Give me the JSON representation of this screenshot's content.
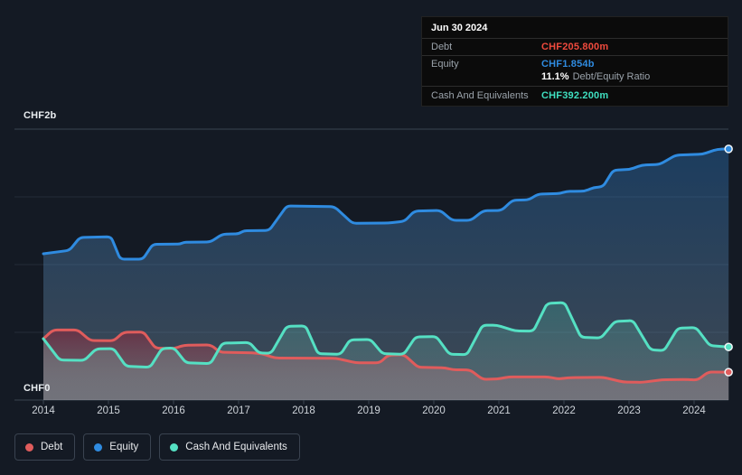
{
  "tooltip": {
    "date": "Jun 30 2024",
    "rows": {
      "debt": {
        "label": "Debt",
        "value": "CHF205.800m"
      },
      "equity": {
        "label": "Equity",
        "value": "CHF1.854b",
        "ratio_value": "11.1%",
        "ratio_label": "Debt/Equity Ratio"
      },
      "cash": {
        "label": "Cash And Equivalents",
        "value": "CHF392.200m"
      }
    }
  },
  "y_axis": {
    "top_label": "CHF2b",
    "bottom_label": "CHF0"
  },
  "x_axis": {
    "years": [
      "2014",
      "2015",
      "2016",
      "2017",
      "2018",
      "2019",
      "2020",
      "2021",
      "2022",
      "2023",
      "2024"
    ]
  },
  "legend": [
    {
      "key": "debt",
      "label": "Debt",
      "color": "#e05c5c"
    },
    {
      "key": "equity",
      "label": "Equity",
      "color": "#2f8be0"
    },
    {
      "key": "cash",
      "label": "Cash And Equivalents",
      "color": "#55e0c3"
    }
  ],
  "colors": {
    "background": "#141a24",
    "gridline_major": "#3a4451",
    "gridline_minor": "#232c38",
    "axis_text": "#ced3d9",
    "tooltip_background": "#0b0b0b",
    "debt": "#e05c5c",
    "equity": "#2f8be0",
    "cash": "#55e0c3"
  },
  "chart_data": {
    "type": "area",
    "title": "",
    "xlabel": "",
    "ylabel": "CHF",
    "unit": "CHF billions",
    "x_unit": "decimal year",
    "xlim": [
      2014.0,
      2024.53
    ],
    "ylim": [
      0,
      2
    ],
    "gridline_step": 0.5,
    "grid": true,
    "legend_position": "bottom-left",
    "latest": {
      "date": "Jun 30 2024",
      "debt_b": 0.2058,
      "equity_b": 1.854,
      "cash_b": 0.3922,
      "debt_equity_ratio_pct": 11.1
    },
    "series": [
      {
        "key": "equity",
        "name": "Equity",
        "color": "#2f8be0",
        "points": [
          [
            2014.0,
            1.08
          ],
          [
            2014.4,
            1.105
          ],
          [
            2014.56,
            1.2
          ],
          [
            2015.04,
            1.205
          ],
          [
            2015.18,
            1.04
          ],
          [
            2015.53,
            1.04
          ],
          [
            2015.68,
            1.15
          ],
          [
            2016.1,
            1.152
          ],
          [
            2016.16,
            1.165
          ],
          [
            2016.57,
            1.167
          ],
          [
            2016.75,
            1.225
          ],
          [
            2017.0,
            1.227
          ],
          [
            2017.08,
            1.25
          ],
          [
            2017.47,
            1.252
          ],
          [
            2017.74,
            1.433
          ],
          [
            2018.47,
            1.428
          ],
          [
            2018.75,
            1.305
          ],
          [
            2019.3,
            1.307
          ],
          [
            2019.55,
            1.32
          ],
          [
            2019.7,
            1.395
          ],
          [
            2020.1,
            1.4
          ],
          [
            2020.28,
            1.327
          ],
          [
            2020.57,
            1.327
          ],
          [
            2020.76,
            1.398
          ],
          [
            2021.04,
            1.4
          ],
          [
            2021.21,
            1.475
          ],
          [
            2021.46,
            1.478
          ],
          [
            2021.6,
            1.52
          ],
          [
            2021.94,
            1.525
          ],
          [
            2022.04,
            1.54
          ],
          [
            2022.32,
            1.542
          ],
          [
            2022.46,
            1.57
          ],
          [
            2022.6,
            1.575
          ],
          [
            2022.76,
            1.698
          ],
          [
            2023.01,
            1.702
          ],
          [
            2023.2,
            1.735
          ],
          [
            2023.47,
            1.74
          ],
          [
            2023.72,
            1.808
          ],
          [
            2024.13,
            1.815
          ],
          [
            2024.36,
            1.852
          ],
          [
            2024.53,
            1.854
          ]
        ]
      },
      {
        "key": "debt",
        "name": "Debt",
        "color": "#e05c5c",
        "points": [
          [
            2014.0,
            0.453
          ],
          [
            2014.15,
            0.517
          ],
          [
            2014.53,
            0.517
          ],
          [
            2014.72,
            0.44
          ],
          [
            2015.08,
            0.438
          ],
          [
            2015.23,
            0.5
          ],
          [
            2015.54,
            0.502
          ],
          [
            2015.72,
            0.383
          ],
          [
            2016.01,
            0.38
          ],
          [
            2016.16,
            0.405
          ],
          [
            2016.57,
            0.407
          ],
          [
            2016.72,
            0.353
          ],
          [
            2017.21,
            0.349
          ],
          [
            2017.36,
            0.342
          ],
          [
            2017.56,
            0.31
          ],
          [
            2018.5,
            0.308
          ],
          [
            2018.8,
            0.275
          ],
          [
            2019.17,
            0.275
          ],
          [
            2019.3,
            0.332
          ],
          [
            2019.54,
            0.335
          ],
          [
            2019.76,
            0.242
          ],
          [
            2020.18,
            0.238
          ],
          [
            2020.29,
            0.224
          ],
          [
            2020.56,
            0.222
          ],
          [
            2020.75,
            0.153
          ],
          [
            2020.97,
            0.155
          ],
          [
            2021.16,
            0.171
          ],
          [
            2021.76,
            0.171
          ],
          [
            2021.92,
            0.155
          ],
          [
            2022.05,
            0.165
          ],
          [
            2022.6,
            0.168
          ],
          [
            2022.91,
            0.133
          ],
          [
            2023.2,
            0.131
          ],
          [
            2023.51,
            0.15
          ],
          [
            2023.9,
            0.152
          ],
          [
            2024.05,
            0.147
          ],
          [
            2024.22,
            0.207
          ],
          [
            2024.53,
            0.206
          ]
        ]
      },
      {
        "key": "cash",
        "name": "Cash And Equivalents",
        "color": "#55e0c3",
        "points": [
          [
            2014.0,
            0.453
          ],
          [
            2014.25,
            0.295
          ],
          [
            2014.63,
            0.293
          ],
          [
            2014.81,
            0.378
          ],
          [
            2015.08,
            0.38
          ],
          [
            2015.27,
            0.249
          ],
          [
            2015.64,
            0.242
          ],
          [
            2015.82,
            0.38
          ],
          [
            2016.01,
            0.385
          ],
          [
            2016.19,
            0.275
          ],
          [
            2016.57,
            0.269
          ],
          [
            2016.75,
            0.42
          ],
          [
            2017.17,
            0.425
          ],
          [
            2017.31,
            0.347
          ],
          [
            2017.5,
            0.346
          ],
          [
            2017.74,
            0.545
          ],
          [
            2018.03,
            0.547
          ],
          [
            2018.22,
            0.342
          ],
          [
            2018.57,
            0.338
          ],
          [
            2018.71,
            0.444
          ],
          [
            2019.03,
            0.447
          ],
          [
            2019.21,
            0.342
          ],
          [
            2019.54,
            0.338
          ],
          [
            2019.72,
            0.466
          ],
          [
            2020.04,
            0.469
          ],
          [
            2020.24,
            0.338
          ],
          [
            2020.51,
            0.335
          ],
          [
            2020.75,
            0.553
          ],
          [
            2020.97,
            0.553
          ],
          [
            2021.25,
            0.51
          ],
          [
            2021.53,
            0.509
          ],
          [
            2021.74,
            0.713
          ],
          [
            2022.01,
            0.72
          ],
          [
            2022.26,
            0.464
          ],
          [
            2022.57,
            0.458
          ],
          [
            2022.78,
            0.58
          ],
          [
            2023.06,
            0.587
          ],
          [
            2023.33,
            0.371
          ],
          [
            2023.54,
            0.365
          ],
          [
            2023.75,
            0.531
          ],
          [
            2024.03,
            0.535
          ],
          [
            2024.24,
            0.402
          ],
          [
            2024.53,
            0.392
          ]
        ]
      }
    ]
  }
}
